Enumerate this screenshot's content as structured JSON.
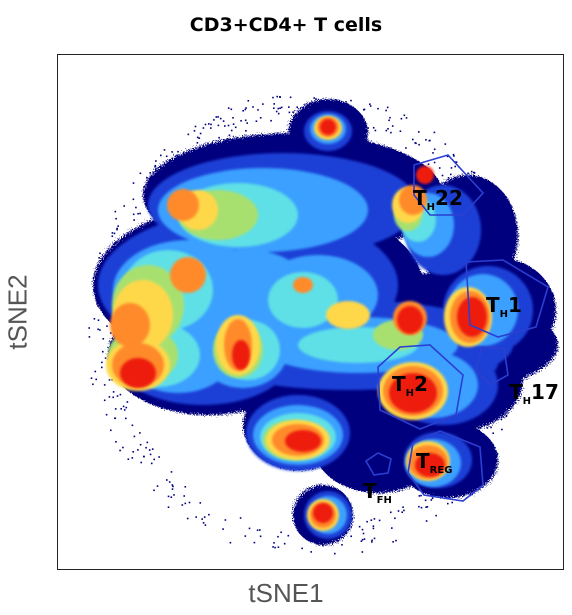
{
  "chart_data": {
    "type": "density",
    "title": "CD3+CD4+ T cells",
    "xlabel": "tSNE1",
    "ylabel": "tSNE2",
    "grid": false,
    "populations": [
      {
        "name": "TH22",
        "main": "T",
        "sub": "H",
        "suffix": "22"
      },
      {
        "name": "TH1",
        "main": "T",
        "sub": "H",
        "suffix": "1"
      },
      {
        "name": "TH2",
        "main": "T",
        "sub": "H",
        "suffix": "2"
      },
      {
        "name": "TH17",
        "main": "T",
        "sub": "H",
        "suffix": "17"
      },
      {
        "name": "TREG",
        "main": "T",
        "sub": "REG",
        "suffix": ""
      },
      {
        "name": "TFH",
        "main": "T",
        "sub": "FH",
        "suffix": ""
      }
    ],
    "colors": {
      "outer": "#00007f",
      "blue": "#1a3fd6",
      "lightblue": "#3aa0ff",
      "cyan": "#5ee0e6",
      "green": "#a8e070",
      "yellow": "#ffd84a",
      "orange": "#ff8a2a",
      "red": "#ee1a10",
      "gate": "#2b3fd0"
    }
  }
}
